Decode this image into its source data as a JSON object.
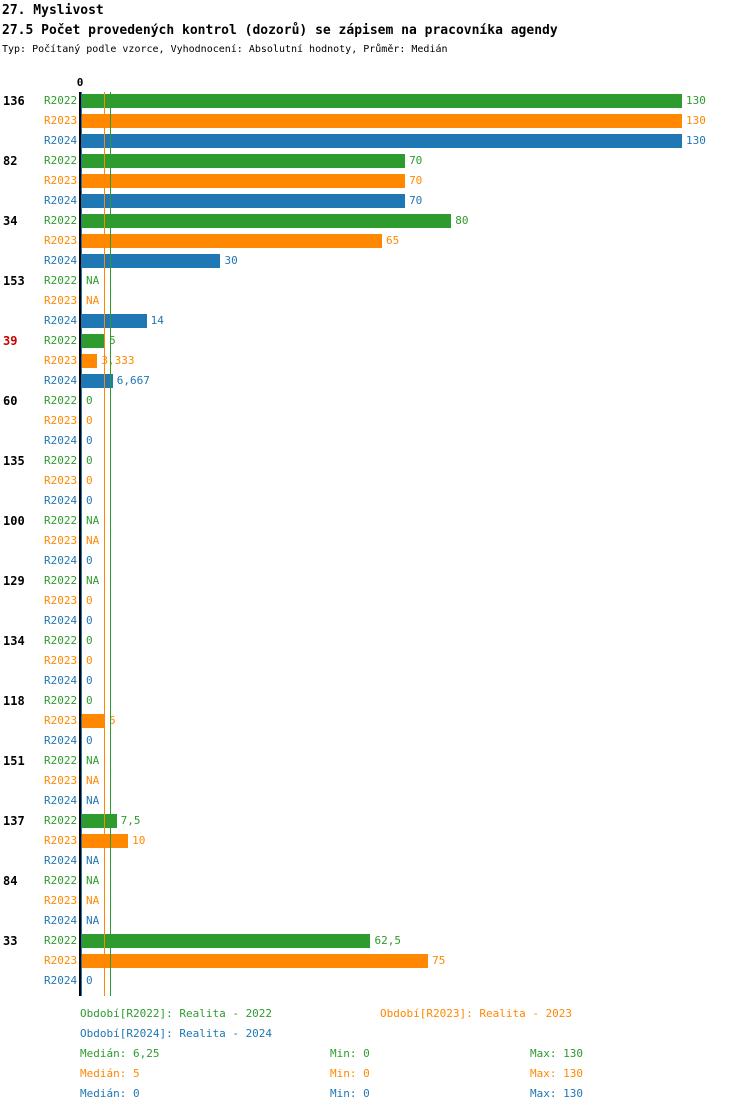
{
  "title": "27. Myslivost",
  "subtitle": "27.5 Počet provedených kontrol (dozorů) se zápisem na pracovníka agendy",
  "meta": "Typ: Počítaný podle vzorce, Vyhodnocení: Absolutní hodnoty, Průměr: Medián",
  "colors": {
    "r2022": "#2E9B2E",
    "r2023": "#FF8800",
    "r2024": "#1F77B4",
    "highlight_id": "#CC0000",
    "axis": "#000000"
  },
  "chart_data": {
    "type": "bar",
    "orientation": "horizontal",
    "title": "27.5 Počet provedených kontrol (dozorů) se zápisem na pracovníka agendy",
    "xlabel": "",
    "ylabel": "",
    "xlim": [
      0,
      130
    ],
    "axis_zero_label": "0",
    "grid": false,
    "legend_position": "bottom",
    "series_labels": [
      "R2022",
      "R2023",
      "R2024"
    ],
    "series_colors": [
      "#2E9B2E",
      "#FF8800",
      "#1F77B4"
    ],
    "median_lines": [
      {
        "series": "R2022",
        "value": 6.25,
        "color": "#2E9B2E"
      },
      {
        "series": "R2023",
        "value": 5,
        "color": "#FF8800"
      },
      {
        "series": "R2024",
        "value": 0,
        "color": "#1F77B4"
      }
    ],
    "groups": [
      {
        "id": "136",
        "values": [
          130,
          130,
          130
        ],
        "labels": [
          "130",
          "130",
          "130"
        ]
      },
      {
        "id": "82",
        "values": [
          70,
          70,
          70
        ],
        "labels": [
          "70",
          "70",
          "70"
        ]
      },
      {
        "id": "34",
        "values": [
          80,
          65,
          30
        ],
        "labels": [
          "80",
          "65",
          "30"
        ]
      },
      {
        "id": "153",
        "values": [
          null,
          null,
          14
        ],
        "labels": [
          "NA",
          "NA",
          "14"
        ]
      },
      {
        "id": "39",
        "values": [
          5,
          3.333,
          6.667
        ],
        "labels": [
          "5",
          "3,333",
          "6,667"
        ],
        "id_color": "#CC0000"
      },
      {
        "id": "60",
        "values": [
          0,
          0,
          0
        ],
        "labels": [
          "0",
          "0",
          "0"
        ]
      },
      {
        "id": "135",
        "values": [
          0,
          0,
          0
        ],
        "labels": [
          "0",
          "0",
          "0"
        ]
      },
      {
        "id": "100",
        "values": [
          null,
          null,
          0
        ],
        "labels": [
          "NA",
          "NA",
          "0"
        ]
      },
      {
        "id": "129",
        "values": [
          null,
          0,
          0
        ],
        "labels": [
          "NA",
          "0",
          "0"
        ]
      },
      {
        "id": "134",
        "values": [
          0,
          0,
          0
        ],
        "labels": [
          "0",
          "0",
          "0"
        ]
      },
      {
        "id": "118",
        "values": [
          0,
          5,
          0
        ],
        "labels": [
          "0",
          "5",
          "0"
        ]
      },
      {
        "id": "151",
        "values": [
          null,
          null,
          null
        ],
        "labels": [
          "NA",
          "NA",
          "NA"
        ]
      },
      {
        "id": "137",
        "values": [
          7.5,
          10,
          null
        ],
        "labels": [
          "7,5",
          "10",
          "NA"
        ]
      },
      {
        "id": "84",
        "values": [
          null,
          null,
          null
        ],
        "labels": [
          "NA",
          "NA",
          "NA"
        ]
      },
      {
        "id": "33",
        "values": [
          62.5,
          75,
          0
        ],
        "labels": [
          "62,5",
          "75",
          "0"
        ]
      }
    ]
  },
  "legend": [
    {
      "label": "Období[R2022]: Realita - 2022",
      "color": "#2E9B2E"
    },
    {
      "label": "Období[R2023]: Realita - 2023",
      "color": "#FF8800"
    },
    {
      "label": "Období[R2024]: Realita - 2024",
      "color": "#1F77B4"
    }
  ],
  "stats": [
    {
      "median": "Medián: 6,25",
      "min": "Min: 0",
      "max": "Max: 130",
      "color": "#2E9B2E"
    },
    {
      "median": "Medián: 5",
      "min": "Min: 0",
      "max": "Max: 130",
      "color": "#FF8800"
    },
    {
      "median": "Medián: 0",
      "min": "Min: 0",
      "max": "Max: 130",
      "color": "#1F77B4"
    }
  ]
}
